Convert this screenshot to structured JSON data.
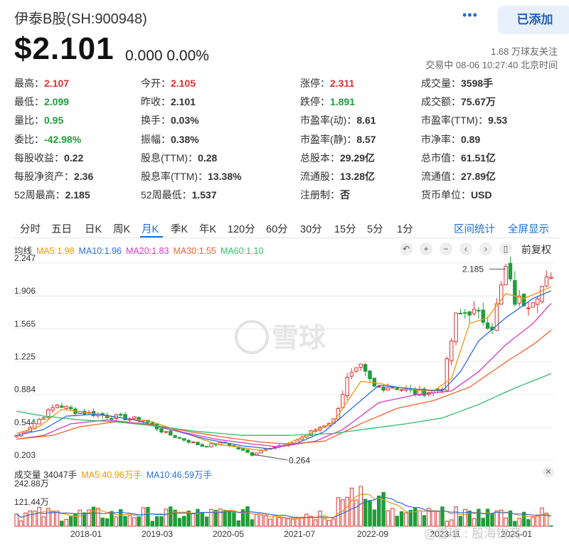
{
  "header": {
    "stock_name": "伊泰B股(SH:900948)",
    "more_icon": "more-dots-icon",
    "added_label": "已添加"
  },
  "quote": {
    "price": "$2.101",
    "change": "0.000 0.00%",
    "followers": "1.68 万球友关注",
    "trade_status": "交易中 08-06 10:27:40 北京时间"
  },
  "stats": [
    [
      {
        "label": "最高：",
        "value": "2.107",
        "color": "red"
      },
      {
        "label": "今开：",
        "value": "2.105",
        "color": "red"
      },
      {
        "label": "涨停：",
        "value": "2.311",
        "color": "red"
      },
      {
        "label": "成交量：",
        "value": "3598手",
        "color": ""
      }
    ],
    [
      {
        "label": "最低：",
        "value": "2.099",
        "color": "green"
      },
      {
        "label": "昨收：",
        "value": "2.101",
        "color": ""
      },
      {
        "label": "跌停：",
        "value": "1.891",
        "color": "green"
      },
      {
        "label": "成交额：",
        "value": "75.67万",
        "color": ""
      }
    ],
    [
      {
        "label": "量比：",
        "value": "0.95",
        "color": "green"
      },
      {
        "label": "换手：",
        "value": "0.03%",
        "color": ""
      },
      {
        "label": "市盈率(动)：",
        "value": "8.61",
        "color": ""
      },
      {
        "label": "市盈率(TTM)：",
        "value": "9.53",
        "color": ""
      }
    ],
    [
      {
        "label": "委比：",
        "value": "-42.98%",
        "color": "green"
      },
      {
        "label": "振幅：",
        "value": "0.38%",
        "color": ""
      },
      {
        "label": "市盈率(静)：",
        "value": "8.57",
        "color": ""
      },
      {
        "label": "市净率：",
        "value": "0.89",
        "color": ""
      }
    ],
    [
      {
        "label": "每股收益：",
        "value": "0.22",
        "color": ""
      },
      {
        "label": "股息(TTM)：",
        "value": "0.28",
        "color": ""
      },
      {
        "label": "总股本：",
        "value": "29.29亿",
        "color": ""
      },
      {
        "label": "总市值：",
        "value": "61.51亿",
        "color": ""
      }
    ],
    [
      {
        "label": "每股净资产：",
        "value": "2.36",
        "color": ""
      },
      {
        "label": "股息率(TTM)：",
        "value": "13.38%",
        "color": ""
      },
      {
        "label": "流通股：",
        "value": "13.28亿",
        "color": ""
      },
      {
        "label": "流通值：",
        "value": "27.89亿",
        "color": ""
      }
    ],
    [
      {
        "label": "52周最高：",
        "value": "2.185",
        "color": ""
      },
      {
        "label": "52周最低：",
        "value": "1.537",
        "color": ""
      },
      {
        "label": "注册制：",
        "value": "否",
        "color": ""
      },
      {
        "label": "货币单位：",
        "value": "USD",
        "color": ""
      }
    ]
  ],
  "periods": {
    "tabs": [
      "分时",
      "五日",
      "日K",
      "周K",
      "月K",
      "季K",
      "年K",
      "120分",
      "60分",
      "30分",
      "15分",
      "5分",
      "1分"
    ],
    "active": "月K",
    "range_stats": "区间统计",
    "fullscreen": "全屏显示"
  },
  "ma_legend": {
    "label": "均线",
    "items": [
      {
        "text": "MA5:1.98",
        "color": "#f0960f"
      },
      {
        "text": "MA10:1.96",
        "color": "#2d6fd6"
      },
      {
        "text": "MA20:1.83",
        "color": "#d63ac4"
      },
      {
        "text": "MA30:1.55",
        "color": "#f0642d"
      },
      {
        "text": "MA60:1.10",
        "color": "#2fbf6a"
      }
    ]
  },
  "toolbar": {
    "icons": [
      "undo-icon",
      "zoom-in-icon",
      "zoom-out-icon",
      "pan-left-icon",
      "pan-right-icon",
      "candle-style-icon"
    ],
    "adjust_label": "前复权"
  },
  "volume_legend": {
    "label": "成交量 34047手",
    "items": [
      {
        "text": "MA5:40.96万手",
        "color": "#f0960f"
      },
      {
        "text": "MA10:46.59万手",
        "color": "#2d6fd6"
      }
    ]
  },
  "watermark": "雪球",
  "corner_watermark": "@雪球 : 股海钩沉",
  "colors": {
    "up": "#e03030",
    "down": "#1f9e3a",
    "accent": "#1f6fd0"
  },
  "chart_data": {
    "type": "candlestick",
    "y_ticks": [
      "2.247",
      "1.906",
      "1.565",
      "1.225",
      "0.884",
      "0.544",
      "0.203"
    ],
    "ylim": [
      0.203,
      2.247
    ],
    "x_ticks": [
      "2018-01",
      "2019-03",
      "2020-05",
      "2021-07",
      "2022-09",
      "2023-11",
      "2025-01"
    ],
    "annotations": [
      {
        "text": "2.185",
        "kind": "high"
      },
      {
        "text": "0.264",
        "kind": "low"
      }
    ],
    "price_keyframes": [
      [
        0,
        0.46
      ],
      [
        3,
        0.55
      ],
      [
        9,
        0.78
      ],
      [
        13,
        0.71
      ],
      [
        20,
        0.66
      ],
      [
        28,
        0.62
      ],
      [
        33,
        0.48
      ],
      [
        41,
        0.35
      ],
      [
        46,
        0.38
      ],
      [
        52,
        0.26
      ],
      [
        55,
        0.33
      ],
      [
        60,
        0.36
      ],
      [
        66,
        0.52
      ],
      [
        70,
        0.62
      ],
      [
        73,
        1.04
      ],
      [
        76,
        1.16
      ],
      [
        79,
        0.96
      ],
      [
        83,
        0.97
      ],
      [
        88,
        0.9
      ],
      [
        92,
        0.92
      ],
      [
        94,
        0.97
      ],
      [
        97,
        1.68
      ],
      [
        100,
        1.76
      ],
      [
        105,
        1.6
      ],
      [
        108,
        2.185
      ],
      [
        110,
        1.86
      ],
      [
        113,
        1.85
      ],
      [
        118,
        2.1
      ]
    ],
    "ma_series": [
      {
        "name": "MA5",
        "keyframes": [
          [
            0,
            0.48
          ],
          [
            5,
            0.55
          ],
          [
            10,
            0.73
          ],
          [
            15,
            0.7
          ],
          [
            20,
            0.66
          ],
          [
            30,
            0.6
          ],
          [
            38,
            0.47
          ],
          [
            44,
            0.37
          ],
          [
            50,
            0.33
          ],
          [
            54,
            0.3
          ],
          [
            58,
            0.34
          ],
          [
            64,
            0.46
          ],
          [
            70,
            0.6
          ],
          [
            76,
            1.02
          ],
          [
            80,
            1.0
          ],
          [
            86,
            0.94
          ],
          [
            92,
            0.92
          ],
          [
            96,
            1.05
          ],
          [
            100,
            1.62
          ],
          [
            104,
            1.68
          ],
          [
            108,
            1.93
          ],
          [
            112,
            1.88
          ],
          [
            118,
            2.0
          ]
        ]
      },
      {
        "name": "MA10",
        "keyframes": [
          [
            0,
            0.46
          ],
          [
            6,
            0.52
          ],
          [
            11,
            0.66
          ],
          [
            18,
            0.68
          ],
          [
            26,
            0.62
          ],
          [
            34,
            0.52
          ],
          [
            42,
            0.42
          ],
          [
            50,
            0.35
          ],
          [
            56,
            0.32
          ],
          [
            62,
            0.38
          ],
          [
            68,
            0.5
          ],
          [
            74,
            0.74
          ],
          [
            80,
            0.98
          ],
          [
            88,
            0.94
          ],
          [
            94,
            0.92
          ],
          [
            98,
            1.12
          ],
          [
            102,
            1.44
          ],
          [
            108,
            1.68
          ],
          [
            114,
            1.88
          ],
          [
            118,
            1.96
          ]
        ]
      },
      {
        "name": "MA20",
        "keyframes": [
          [
            0,
            0.42
          ],
          [
            6,
            0.46
          ],
          [
            12,
            0.58
          ],
          [
            20,
            0.62
          ],
          [
            28,
            0.58
          ],
          [
            36,
            0.5
          ],
          [
            44,
            0.42
          ],
          [
            52,
            0.37
          ],
          [
            58,
            0.34
          ],
          [
            66,
            0.4
          ],
          [
            72,
            0.52
          ],
          [
            80,
            0.8
          ],
          [
            88,
            0.88
          ],
          [
            96,
            0.92
          ],
          [
            102,
            1.12
          ],
          [
            108,
            1.4
          ],
          [
            114,
            1.62
          ],
          [
            118,
            1.83
          ]
        ]
      },
      {
        "name": "MA30",
        "keyframes": [
          [
            0,
            0.42
          ],
          [
            8,
            0.46
          ],
          [
            14,
            0.55
          ],
          [
            22,
            0.6
          ],
          [
            30,
            0.57
          ],
          [
            38,
            0.5
          ],
          [
            46,
            0.44
          ],
          [
            54,
            0.39
          ],
          [
            60,
            0.37
          ],
          [
            68,
            0.4
          ],
          [
            76,
            0.58
          ],
          [
            84,
            0.74
          ],
          [
            92,
            0.82
          ],
          [
            100,
            0.96
          ],
          [
            108,
            1.22
          ],
          [
            114,
            1.4
          ],
          [
            118,
            1.55
          ]
        ]
      },
      {
        "name": "MA60",
        "keyframes": [
          [
            0,
            0.71
          ],
          [
            6,
            0.66
          ],
          [
            14,
            0.62
          ],
          [
            22,
            0.6
          ],
          [
            30,
            0.56
          ],
          [
            40,
            0.5
          ],
          [
            50,
            0.46
          ],
          [
            60,
            0.46
          ],
          [
            70,
            0.48
          ],
          [
            78,
            0.53
          ],
          [
            86,
            0.58
          ],
          [
            94,
            0.64
          ],
          [
            102,
            0.78
          ],
          [
            110,
            0.95
          ],
          [
            118,
            1.1
          ]
        ]
      }
    ],
    "volume": {
      "max_label": "242.88万",
      "mid_label": "121.44万",
      "max_value": 242.88
    }
  }
}
